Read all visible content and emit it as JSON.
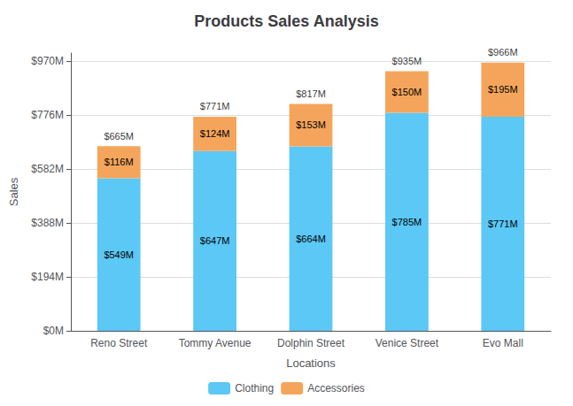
{
  "chart_data": {
    "type": "bar",
    "title": "Products Sales Analysis",
    "xlabel": "Locations",
    "ylabel": "Sales",
    "categories": [
      "Reno Street",
      "Tommy Avenue",
      "Dolphin Street",
      "Venice Street",
      "Evo Mall"
    ],
    "stacked": true,
    "data_labels": true,
    "grid": true,
    "legend": "bottom",
    "series": [
      {
        "name": "Clothing",
        "color": "#5BC8F5",
        "values": [
          549,
          647,
          664,
          785,
          771
        ],
        "value_labels": [
          "$549M",
          "$647M",
          "$664M",
          "$785M",
          "$771M"
        ]
      },
      {
        "name": "Accessories",
        "color": "#F5A55B",
        "values": [
          116,
          124,
          153,
          150,
          195
        ],
        "value_labels": [
          "$116M",
          "$124M",
          "$153M",
          "$150M",
          "$195M"
        ]
      }
    ],
    "annotations": [
      {
        "x": "Reno Street",
        "y": 665,
        "text": "$665M"
      },
      {
        "x": "Tommy Avenue",
        "y": 771,
        "text": "$771M"
      },
      {
        "x": "Dolphin Street",
        "y": 817,
        "text": "$817M"
      },
      {
        "x": "Venice Street",
        "y": 935,
        "text": "$935M"
      },
      {
        "x": "Evo Mall",
        "y": 966,
        "text": "$966M"
      }
    ],
    "ylim": [
      0,
      1000
    ],
    "yticks": [
      {
        "value": 0,
        "label": "$0M"
      },
      {
        "value": 194,
        "label": "$194M"
      },
      {
        "value": 388,
        "label": "$388M"
      },
      {
        "value": 582,
        "label": "$582M"
      },
      {
        "value": 776,
        "label": "$776M"
      },
      {
        "value": 970,
        "label": "$970M"
      }
    ]
  }
}
